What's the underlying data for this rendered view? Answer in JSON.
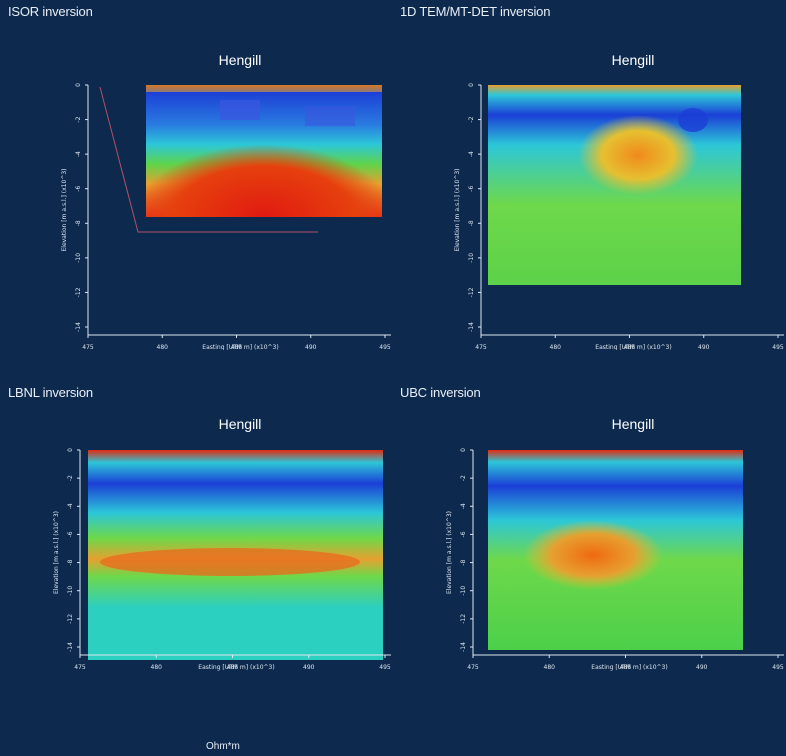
{
  "figure": {
    "footer_unit": "Ohm*m"
  },
  "colors": {
    "background": "#0d2a4e",
    "deep_blue": "#1b3fd6",
    "cyan": "#2cc7d8",
    "green": "#5fd44a",
    "yellow": "#e6e03a",
    "orange": "#f08a1c",
    "red": "#e01a10"
  },
  "chart_data": [
    {
      "type": "heatmap",
      "caption": "ISOR inversion",
      "title": "Hengill",
      "xlabel": "Easting [UTM m] (x10^3)",
      "ylabel": "Elevation [m a.s.l.] (x10^3)",
      "x_ticks": [
        "475",
        "480",
        "485",
        "490",
        "495"
      ],
      "y_ticks": [
        "0",
        "-2",
        "-4",
        "-6",
        "-8",
        "-10",
        "-12",
        "-14"
      ],
      "xlim": [
        475,
        495
      ],
      "ylim": [
        -14,
        0
      ]
    },
    {
      "type": "heatmap",
      "caption": "1D TEM/MT-DET inversion",
      "title": "Hengill",
      "xlabel": "Easting [UTM m] (x10^3)",
      "ylabel": "Elevation [m a.s.l.] (x10^3)",
      "x_ticks": [
        "475",
        "480",
        "485",
        "490",
        "495"
      ],
      "y_ticks": [
        "0",
        "-2",
        "-4",
        "-6",
        "-8",
        "-10",
        "-12",
        "-14"
      ],
      "xlim": [
        475,
        495
      ],
      "ylim": [
        -14,
        0
      ]
    },
    {
      "type": "heatmap",
      "caption": "LBNL inversion",
      "title": "Hengill",
      "xlabel": "Easting [UTM m] (x10^3)",
      "ylabel": "Elevation [m a.s.l.] (x10^3)",
      "x_ticks": [
        "475",
        "480",
        "485",
        "490",
        "495"
      ],
      "y_ticks": [
        "0",
        "-2",
        "-4",
        "-6",
        "-8",
        "-10",
        "-12",
        "-14"
      ],
      "xlim": [
        475,
        495
      ],
      "ylim": [
        -14,
        0
      ]
    },
    {
      "type": "heatmap",
      "caption": "UBC inversion",
      "title": "Hengill",
      "xlabel": "Easting [UTM m] (x10^3)",
      "ylabel": "Elevation [m a.s.l.] (x10^3)",
      "x_ticks": [
        "475",
        "480",
        "485",
        "490",
        "495"
      ],
      "y_ticks": [
        "0",
        "-2",
        "-4",
        "-6",
        "-8",
        "-10",
        "-12",
        "-14"
      ],
      "xlim": [
        475,
        495
      ],
      "ylim": [
        -14,
        0
      ]
    }
  ]
}
